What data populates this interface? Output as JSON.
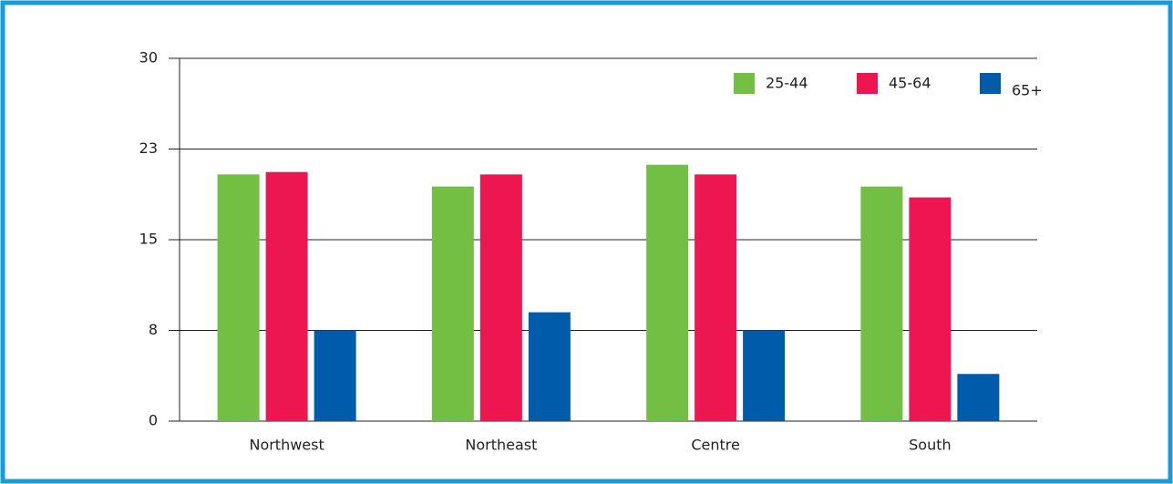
{
  "chart_data": {
    "type": "bar",
    "categories": [
      "Northwest",
      "Northeast",
      "Centre",
      "South"
    ],
    "series": [
      {
        "name": "25-44",
        "color": "#72bf44",
        "values": [
          20.4,
          19.4,
          21.2,
          19.4
        ]
      },
      {
        "name": "45-64",
        "color": "#ed1651",
        "values": [
          20.6,
          20.4,
          20.4,
          18.5
        ]
      },
      {
        "name": "65+",
        "color": "#005bab",
        "values": [
          7.5,
          9.0,
          7.5,
          3.9
        ]
      }
    ],
    "ylim": [
      0,
      30
    ],
    "yticks": [
      0,
      {
        "value": 7.5,
        "label": "8"
      },
      15,
      {
        "value": 22.5,
        "label": "23"
      },
      30
    ],
    "grid": true,
    "legend": "top-right"
  }
}
